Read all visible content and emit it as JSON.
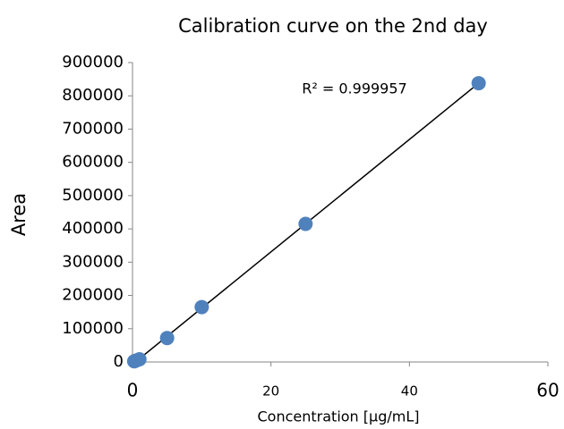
{
  "chart_data": {
    "type": "scatter",
    "title": "Calibration curve on the 2nd day",
    "xlabel": "Concentration [µg/mL]",
    "ylabel": "Area",
    "annotation": "R² = 0.999957",
    "series": [
      {
        "name": "Area",
        "color": "#4f81bd",
        "x": [
          0.25,
          0.5,
          1,
          5,
          10,
          25,
          50
        ],
        "values": [
          2000,
          4000,
          8000,
          72000,
          165000,
          415000,
          838000
        ]
      }
    ],
    "trendline": {
      "color": "#000000",
      "x": [
        0.25,
        50
      ],
      "values": [
        -3000,
        838000
      ]
    },
    "xlim": [
      0,
      60
    ],
    "xticks": [
      0,
      20,
      40,
      60
    ],
    "ylim": [
      0,
      900000
    ],
    "yticks": [
      0,
      100000,
      200000,
      300000,
      400000,
      500000,
      600000,
      700000,
      800000,
      900000
    ],
    "grid": false
  }
}
